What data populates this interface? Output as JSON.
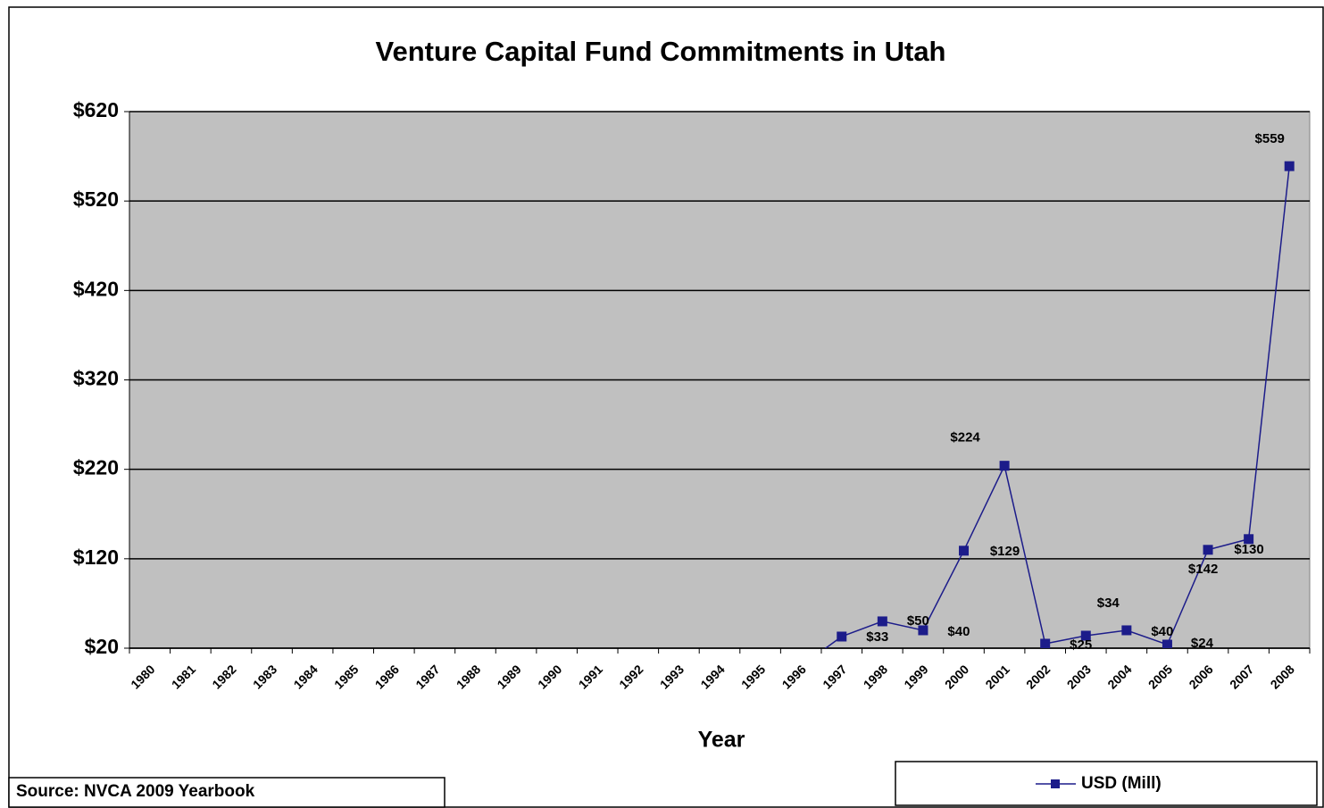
{
  "chart_data": {
    "type": "line",
    "title": "Venture Capital Fund Commitments in Utah",
    "x_label": "Year",
    "source": "Source: NVCA 2009 Yearbook",
    "categories": [
      "1980",
      "1981",
      "1982",
      "1983",
      "1984",
      "1985",
      "1986",
      "1987",
      "1988",
      "1989",
      "1990",
      "1991",
      "1992",
      "1993",
      "1994",
      "1995",
      "1996",
      "1997",
      "1998",
      "1999",
      "2000",
      "2001",
      "2002",
      "2003",
      "2004",
      "2005",
      "2006",
      "2007",
      "2008"
    ],
    "series": [
      {
        "name": "USD (Mill)",
        "color": "#1c1c8a",
        "values": [
          0,
          0,
          0,
          0,
          0,
          0,
          0,
          0,
          0,
          0,
          0,
          0,
          0,
          0,
          0,
          0,
          0,
          33,
          50,
          40,
          129,
          224,
          25,
          34,
          40,
          24,
          130,
          142,
          559
        ],
        "value_labels": [
          null,
          null,
          null,
          null,
          null,
          null,
          null,
          null,
          null,
          null,
          null,
          null,
          null,
          null,
          null,
          null,
          null,
          "$33",
          "$50",
          "$40",
          "$129",
          "$224",
          "$25",
          "$34",
          "$40",
          "$24",
          "$130",
          "$142",
          "$559"
        ]
      }
    ],
    "ylim": [
      20,
      620
    ],
    "yticks": [
      {
        "value": 20,
        "label": "$20"
      },
      {
        "value": 120,
        "label": "$120"
      },
      {
        "value": 220,
        "label": "$220"
      },
      {
        "value": 320,
        "label": "$320"
      },
      {
        "value": 420,
        "label": "$420"
      },
      {
        "value": 520,
        "label": "$520"
      },
      {
        "value": 620,
        "label": "$620"
      }
    ],
    "grid": true,
    "legend": "bottom-right"
  }
}
